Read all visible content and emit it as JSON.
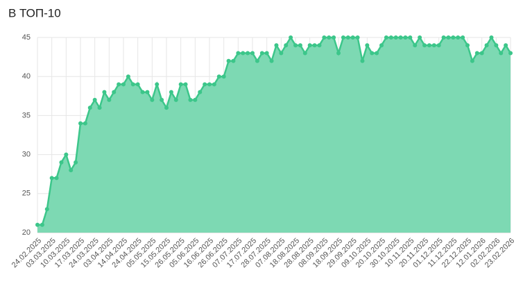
{
  "chart_data": {
    "type": "area",
    "title": "В ТОП-10",
    "categories": [
      "24.02.2025",
      null,
      null,
      "03.03.2025",
      null,
      null,
      "10.03.2025",
      null,
      null,
      "17.03.2025",
      null,
      null,
      "24.03.2025",
      null,
      null,
      "03.04.2025",
      null,
      null,
      "14.04.2025",
      null,
      null,
      "24.04.2025",
      null,
      null,
      "05.05.2025",
      null,
      null,
      "15.05.2025",
      null,
      null,
      "26.05.2025",
      null,
      null,
      "05.06.2025",
      null,
      null,
      "16.06.2025",
      null,
      null,
      "26.06.2025",
      null,
      null,
      "07.07.2025",
      null,
      null,
      "17.07.2025",
      null,
      null,
      "28.07.2025",
      null,
      null,
      "07.08.2025",
      null,
      null,
      "18.08.2025",
      null,
      null,
      "28.08.2025",
      null,
      null,
      "08.09.2025",
      null,
      null,
      "18.09.2025",
      null,
      null,
      "29.09.2025",
      null,
      null,
      "09.10.2025",
      null,
      null,
      "20.10.2025",
      null,
      null,
      "30.10.2025",
      null,
      null,
      "10.11.2025",
      null,
      null,
      "20.11.2025",
      null,
      null,
      "01.12.2025",
      null,
      null,
      "11.12.2025",
      null,
      null,
      "22.12.2025",
      null,
      null,
      "12.01.2026",
      null,
      null,
      "02.02.2026",
      null,
      null,
      "23.02.2026"
    ],
    "values": [
      21,
      21,
      23,
      27,
      27,
      29,
      30,
      28,
      29,
      34,
      34,
      36,
      37,
      36,
      38,
      37,
      38,
      39,
      39,
      40,
      39,
      39,
      38,
      38,
      37,
      39,
      37,
      36,
      38,
      37,
      39,
      39,
      37,
      37,
      38,
      39,
      39,
      39,
      40,
      40,
      42,
      42,
      43,
      43,
      43,
      43,
      42,
      43,
      43,
      42,
      44,
      43,
      44,
      45,
      44,
      44,
      43,
      44,
      44,
      44,
      45,
      45,
      45,
      43,
      45,
      45,
      45,
      45,
      42,
      44,
      43,
      43,
      44,
      45,
      45,
      45,
      45,
      45,
      45,
      44,
      45,
      44,
      44,
      44,
      44,
      45,
      45,
      45,
      45,
      45,
      44,
      42,
      43,
      43,
      44,
      45,
      44,
      43,
      44,
      43
    ],
    "color": "#3cc68a",
    "fill": "#7dd9b3",
    "ylim": [
      20,
      45
    ],
    "yticks": [
      20,
      25,
      30,
      35,
      40,
      45
    ],
    "grid": true
  }
}
